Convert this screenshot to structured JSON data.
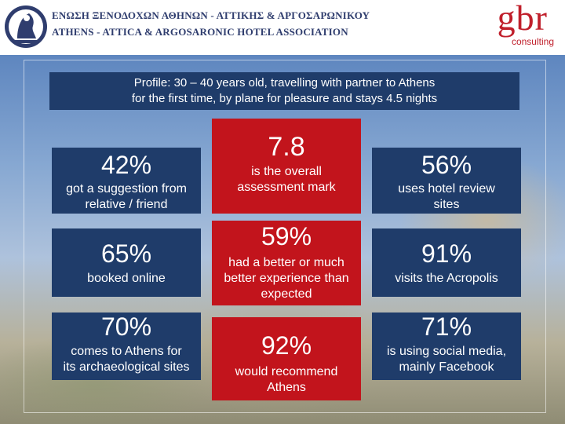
{
  "header": {
    "org_greek": "ΕΝΩΣΗ ΞΕΝΟΔΟΧΩΝ ΑΘΗΝΩΝ - ΑΤΤΙΚΗΣ & ΑΡΓΟΣΑΡΩΝΙΚΟΥ",
    "org_english": "ATHENS - ATTICA & ARGOSARONIC HOTEL ASSOCIATION",
    "brand_letters": "gbr",
    "brand_sub": "consulting"
  },
  "banner": {
    "line1": "Profile: 30 – 40 years old, travelling with partner to Athens",
    "line2": "for the first time, by plane for pleasure and stays 4.5 nights"
  },
  "stats": {
    "s1": {
      "value": "42%",
      "text1": "got a suggestion from",
      "text2": "relative / friend"
    },
    "s2": {
      "value": "7.8",
      "text1": "is the overall",
      "text2": "assessment mark"
    },
    "s3": {
      "value": "56%",
      "text1": "uses hotel review",
      "text2": "sites"
    },
    "s4": {
      "value": "65%",
      "text1": "booked online"
    },
    "s5": {
      "value": "59%",
      "text1": "had a better or much",
      "text2": "better experience than",
      "text3": "expected"
    },
    "s6": {
      "value": "91%",
      "text1": "visits the Acropolis"
    },
    "s7": {
      "value": "70%",
      "text1": "comes to Athens for",
      "text2": "its archaeological sites"
    },
    "s8": {
      "value": "92%",
      "text1": "would recommend",
      "text2": "Athens"
    },
    "s9": {
      "value": "71%",
      "text1": "is using social media,",
      "text2": "mainly Facebook"
    }
  },
  "colors": {
    "navy": "#1f3c6a",
    "red": "#c2141c",
    "brand_red": "#c01f2b",
    "org_text": "#2f3d6e"
  }
}
